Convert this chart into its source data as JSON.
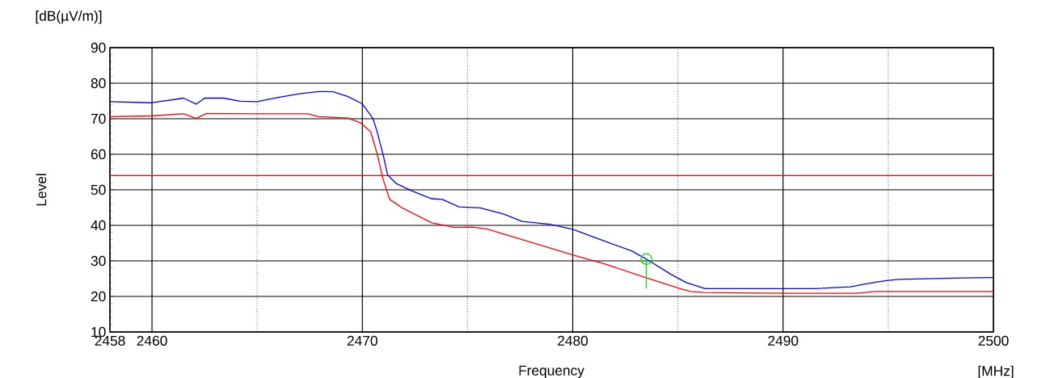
{
  "chart_data": {
    "type": "line",
    "xlabel": "Frequency",
    "ylabel": "Level",
    "annotations": [
      "[dB(µV/m)]",
      "[MHz]"
    ],
    "xlim": [
      2458,
      2500
    ],
    "ylim": [
      10,
      90
    ],
    "xticks": [
      2458,
      2460,
      2470,
      2480,
      2490,
      2500
    ],
    "yticks": [
      10,
      20,
      30,
      40,
      50,
      60,
      70,
      80,
      90
    ],
    "grid": true,
    "marker": "none",
    "line_style": "solid",
    "ref_lines": [
      {
        "axis": "y",
        "value": 54,
        "color": "#ff0000"
      }
    ],
    "series": [
      {
        "color": "#0000ff",
        "x": [
          2458,
          2460,
          2461.5,
          2462.1,
          2462.5,
          2463.4,
          2464.2,
          2465,
          2466,
          2467,
          2468,
          2468.6,
          2469.3,
          2470,
          2470.5,
          2470.7,
          2471,
          2471.2,
          2471.6,
          2472.4,
          2473.3,
          2473.8,
          2474.6,
          2475.6,
          2476.7,
          2477.6,
          2478.9,
          2480,
          2481.5,
          2482.8,
          2483.5,
          2484.7,
          2485.4,
          2486.3,
          2491.5,
          2493.2,
          2493.8,
          2494.4,
          2495,
          2495.5,
          2498.5,
          2500
        ],
        "values": [
          74.8,
          74.5,
          75.8,
          74.1,
          75.8,
          75.8,
          74.9,
          74.8,
          76,
          77,
          77.7,
          77.6,
          76.3,
          74.2,
          70.1,
          66.4,
          59.5,
          54.2,
          51.8,
          49.6,
          47.5,
          47.3,
          45.2,
          44.9,
          43.2,
          41.1,
          40.3,
          38.9,
          35.6,
          32.8,
          30.5,
          26.1,
          23.9,
          22.2,
          22.2,
          22.7,
          23.4,
          24,
          24.5,
          24.8,
          25.2,
          25.3
        ]
      },
      {
        "color": "#ff0000",
        "x": [
          2458,
          2460,
          2461.5,
          2462.1,
          2462.6,
          2465,
          2467.4,
          2467.9,
          2469.3,
          2469.9,
          2470.4,
          2470.7,
          2471,
          2471.3,
          2471.9,
          2473.3,
          2474.4,
          2475.2,
          2475.9,
          2477.6,
          2480,
          2481.5,
          2483.4,
          2485.1,
          2485.6,
          2486.2,
          2490,
          2493.5,
          2494.4,
          2500
        ],
        "values": [
          70.6,
          70.8,
          71.4,
          70.1,
          71.5,
          71.4,
          71.4,
          70.6,
          70.2,
          68.9,
          66.3,
          60.2,
          52.7,
          47.3,
          44.9,
          40.7,
          39.4,
          39.5,
          39,
          36,
          31.7,
          29.2,
          25.4,
          22.2,
          21.4,
          21.1,
          20.9,
          20.9,
          21.4,
          21.4
        ]
      },
      {
        "type": "scatter",
        "marker": "circle",
        "color": "#00dd00",
        "x": [
          2483.5
        ],
        "values": [
          30.5
        ],
        "errors": [
          [
            22.3,
            30.5
          ]
        ]
      }
    ]
  }
}
